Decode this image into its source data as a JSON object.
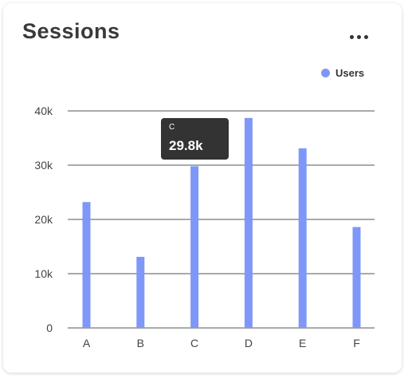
{
  "card": {
    "title": "Sessions",
    "menu_icon": "more-horizontal-icon"
  },
  "colors": {
    "bar": "#7f97f8",
    "grid": "#555555",
    "tooltip_bg": "#333333"
  },
  "tooltip": {
    "category": "C",
    "value_label": "29.8k"
  },
  "chart_data": {
    "type": "bar",
    "categories": [
      "A",
      "B",
      "C",
      "D",
      "E",
      "F"
    ],
    "series": [
      {
        "name": "Users",
        "values": [
          23200,
          13100,
          29800,
          38700,
          33100,
          18600
        ]
      }
    ],
    "ylim": [
      0,
      40000
    ],
    "yticks": [
      0,
      10000,
      20000,
      30000,
      40000
    ],
    "ytick_labels": [
      "0",
      "10k",
      "20k",
      "30k",
      "40k"
    ],
    "grid": true,
    "legend": "top-right",
    "title": "",
    "xlabel": "",
    "ylabel": ""
  }
}
